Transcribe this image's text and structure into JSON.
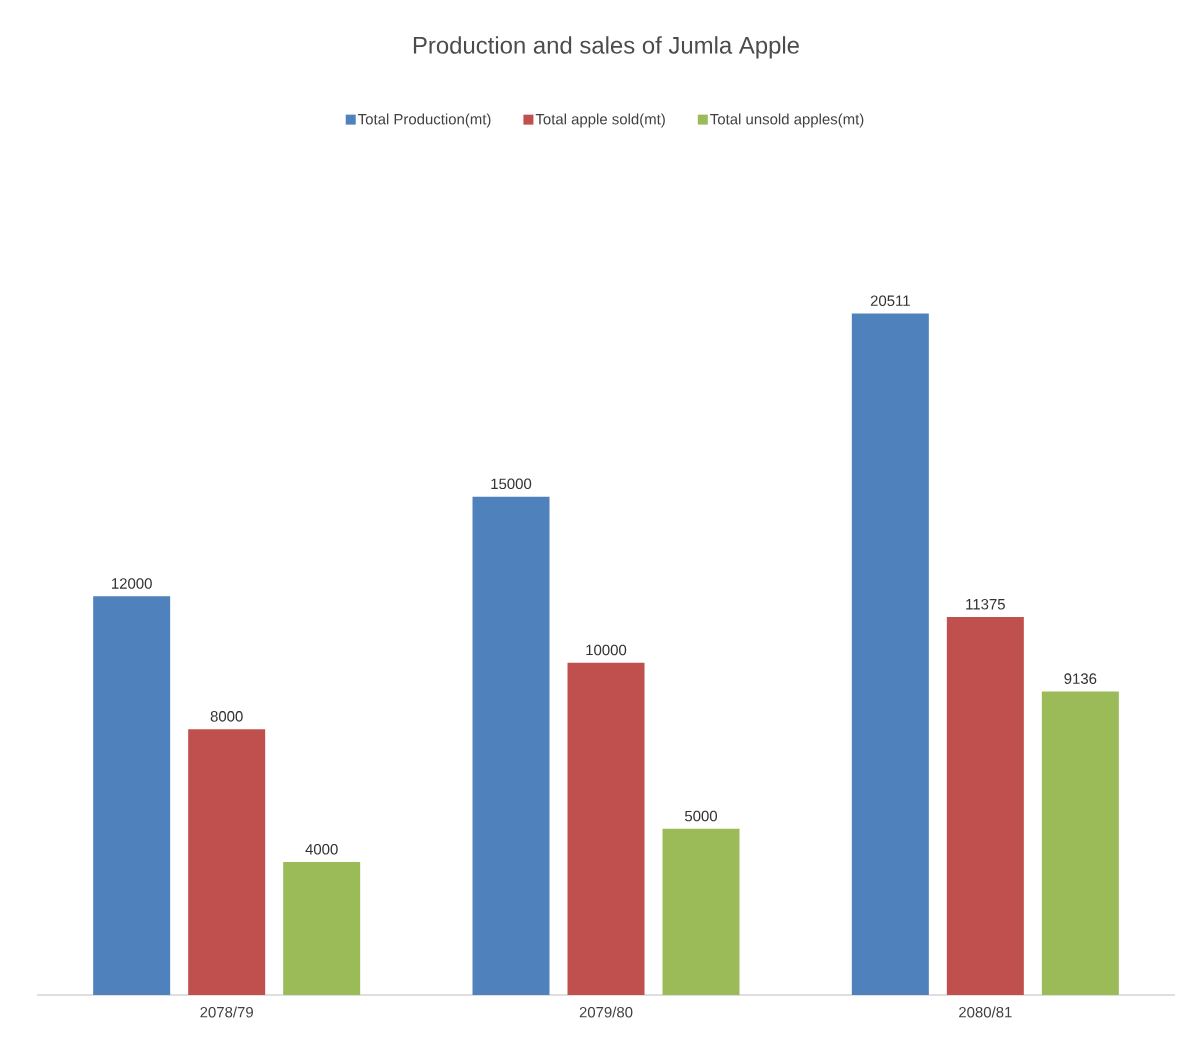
{
  "chart_data": {
    "type": "bar",
    "title": "Production and sales of Jumla Apple",
    "categories": [
      "2078/79",
      "2079/80",
      "2080/81"
    ],
    "series": [
      {
        "name": "Total Production(mt)",
        "color": "#4f81bd",
        "values": [
          12000,
          15000,
          20511
        ]
      },
      {
        "name": "Total apple sold(mt)",
        "color": "#c0504d",
        "values": [
          8000,
          10000,
          11375
        ]
      },
      {
        "name": "Total unsold apples(mt)",
        "color": "#9bbb59",
        "values": [
          4000,
          5000,
          9136
        ]
      }
    ],
    "data_labels": true,
    "legend": "top"
  }
}
